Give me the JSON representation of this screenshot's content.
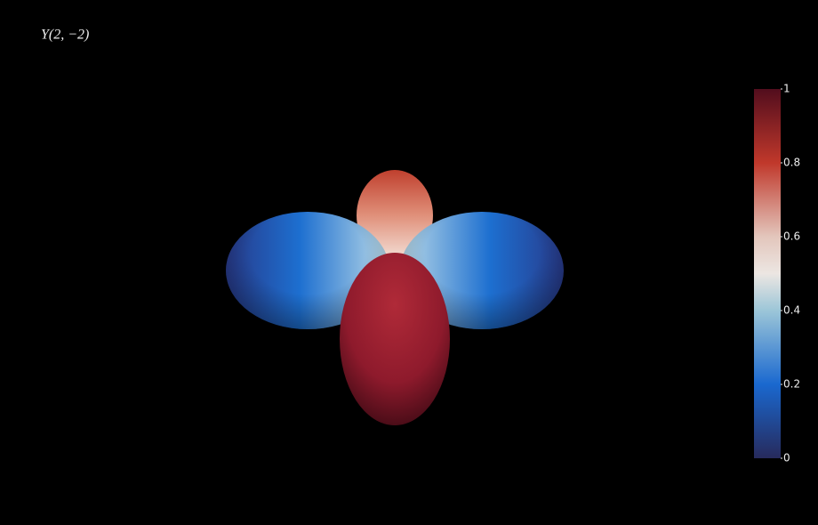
{
  "chart_data": {
    "type": "surface",
    "title": "Y(2, −2)",
    "clim": [
      0,
      1
    ],
    "cticks": [
      0,
      0.2,
      0.4,
      0.6,
      0.8,
      1
    ],
    "colorscale": [
      [
        0,
        "#272a5c"
      ],
      [
        0.2,
        "#1a68cf"
      ],
      [
        0.4,
        "#9cc6d8"
      ],
      [
        0.5,
        "#ece6e2"
      ],
      [
        0.6,
        "#e3c6bc"
      ],
      [
        0.8,
        "#c0382b"
      ],
      [
        1,
        "#520d1d"
      ]
    ]
  }
}
